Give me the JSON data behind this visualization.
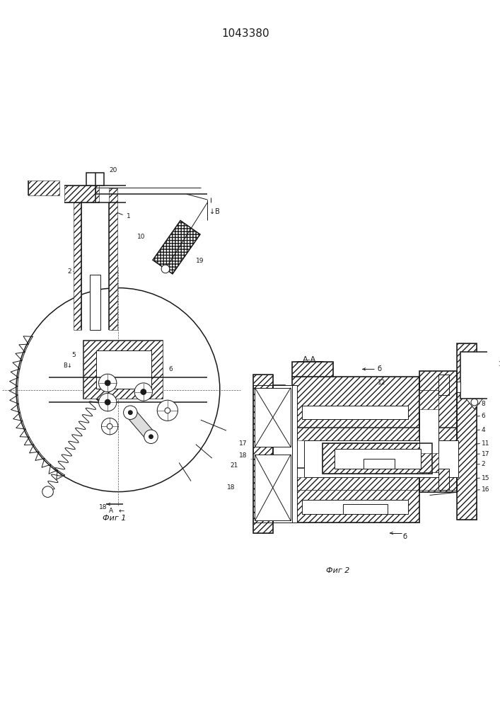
{
  "title": "1043380",
  "background": "#ffffff",
  "line_color": "#1a1a1a",
  "fig1_label": "Фиг 1",
  "fig2_label": "Фиг 2",
  "section_label": "А-А"
}
